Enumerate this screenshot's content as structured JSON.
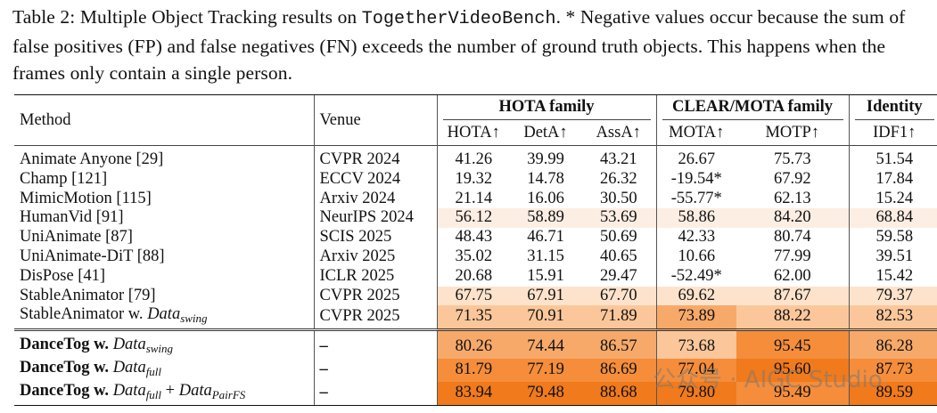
{
  "caption": {
    "label": "Table 2:",
    "text_a": " Multiple Object Tracking results on ",
    "bench": "TogetherVideoBench",
    "text_b": ". * Negative values occur because the sum of false positives (FP) and false negatives (FN) exceeds the number of ground truth objects. This happens when the frames only contain a single person."
  },
  "headers": {
    "method": "Method",
    "venue": "Venue",
    "group_hota": "HOTA family",
    "group_clear": "CLEAR/MOTA family",
    "group_identity": "Identity",
    "cols": [
      "HOTA↑",
      "DetA↑",
      "AssA↑",
      "MOTA↑",
      "MOTP↑",
      "IDF1↑"
    ]
  },
  "colors": {
    "light": "#fde3cb",
    "lighter": "#fdeee4",
    "medium": "#fbc79a",
    "strong": "#f7a96a",
    "deep": "#f58d3a",
    "deepest": "#f07a1c"
  },
  "rows": [
    {
      "method": "Animate Anyone [29]",
      "venue": "CVPR 2024",
      "vals": [
        "41.26",
        "39.99",
        "43.21",
        "26.67",
        "75.73",
        "51.54"
      ]
    },
    {
      "method": "Champ [121]",
      "venue": "ECCV 2024",
      "vals": [
        "19.32",
        "14.78",
        "26.32",
        "-19.54*",
        "67.92",
        "17.84"
      ]
    },
    {
      "method": "MimicMotion [115]",
      "venue": "Arxiv 2024",
      "vals": [
        "21.14",
        "16.06",
        "30.50",
        "-55.77*",
        "62.13",
        "15.24"
      ]
    },
    {
      "method": "HumanVid [91]",
      "venue": "NeurIPS 2024",
      "vals": [
        "56.12",
        "58.89",
        "53.69",
        "58.86",
        "84.20",
        "68.84"
      ]
    },
    {
      "method": "UniAnimate [87]",
      "venue": "SCIS 2025",
      "vals": [
        "48.43",
        "46.71",
        "50.69",
        "42.33",
        "80.74",
        "59.58"
      ]
    },
    {
      "method": "UniAnimate-DiT [88]",
      "venue": "Arxiv 2025",
      "vals": [
        "35.02",
        "31.15",
        "40.65",
        "10.66",
        "77.99",
        "39.51"
      ]
    },
    {
      "method": "DisPose [41]",
      "venue": "ICLR 2025",
      "vals": [
        "20.68",
        "15.91",
        "29.47",
        "-52.49*",
        "62.00",
        "15.42"
      ]
    },
    {
      "method": "StableAnimator [79]",
      "venue": "CVPR 2025",
      "vals": [
        "67.75",
        "67.91",
        "67.70",
        "69.62",
        "87.67",
        "79.37"
      ]
    },
    {
      "method": "StableAnimator w. ",
      "math": "Data",
      "sub": "swing",
      "venue": "CVPR 2025",
      "vals": [
        "71.35",
        "70.91",
        "71.89",
        "73.89",
        "88.22",
        "82.53"
      ]
    }
  ],
  "ours": [
    {
      "method": "DanceTog w. ",
      "math": "Data",
      "sub": "swing",
      "venue": "–",
      "vals": [
        "80.26",
        "74.44",
        "86.57",
        "73.68",
        "95.45",
        "86.28"
      ]
    },
    {
      "method": "DanceTog w. ",
      "math": "Data",
      "sub": "full",
      "venue": "–",
      "vals": [
        "81.79",
        "77.19",
        "86.69",
        "77.04",
        "95.60",
        "87.73"
      ]
    },
    {
      "method": "DanceTog w. ",
      "math": "Data",
      "sub": "full",
      "plus": " + ",
      "math2": "Data",
      "sub2": "PairFS",
      "venue": "–",
      "vals": [
        "83.94",
        "79.48",
        "88.68",
        "79.80",
        "95.49",
        "89.59"
      ]
    }
  ],
  "watermark": "公众号 · AIGC Studio"
}
